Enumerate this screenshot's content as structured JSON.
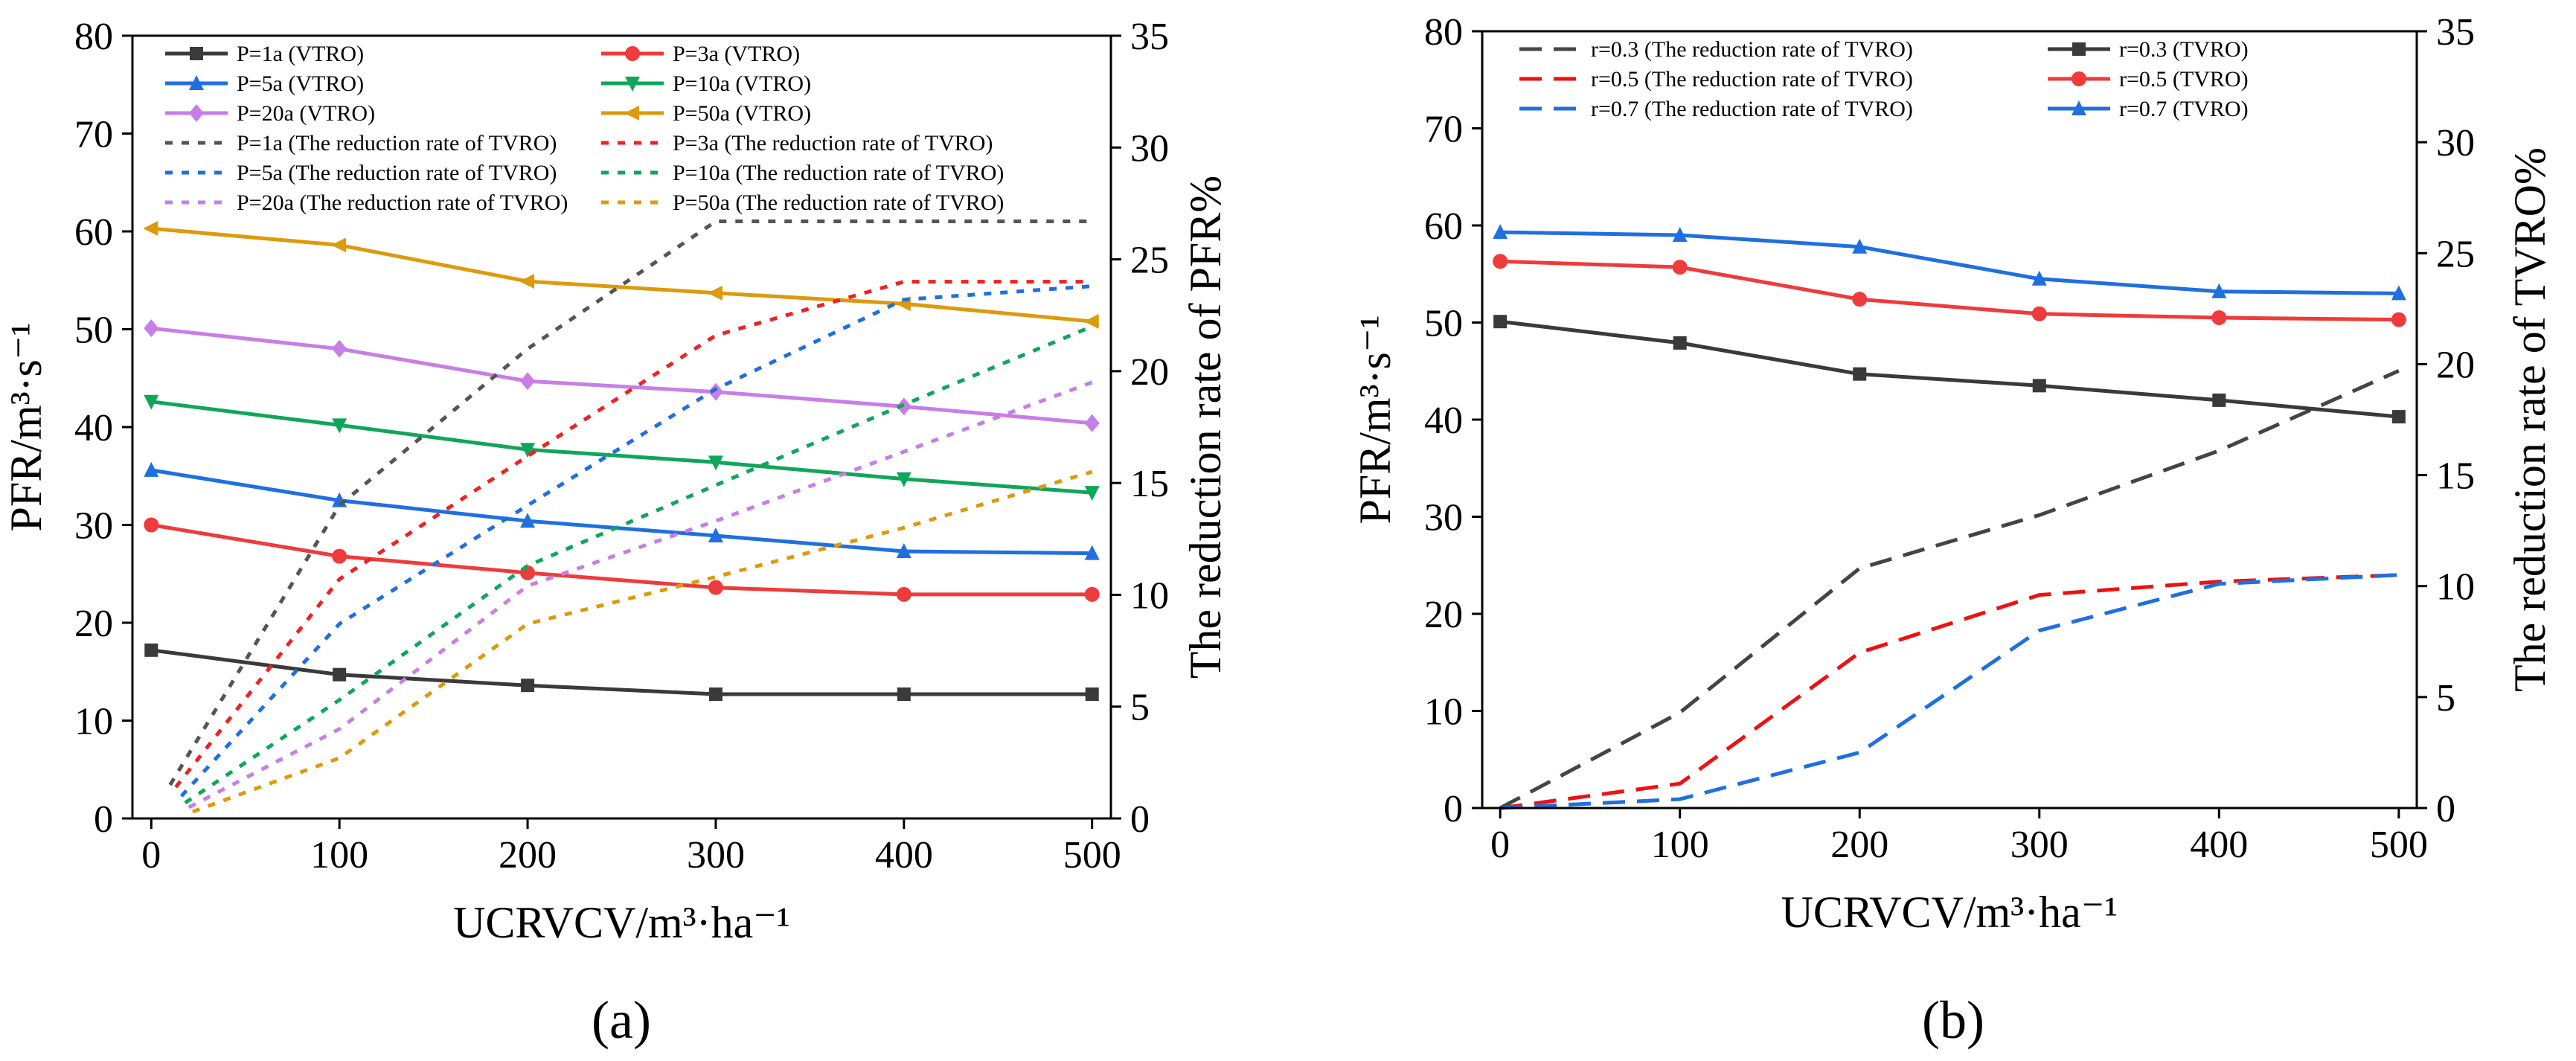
{
  "chart_data": [
    {
      "id": "a",
      "type": "line",
      "panel_label": "(a)",
      "xlabel": "UCRVCV/m³·ha⁻¹",
      "ylabel_left": "PFR/m³·s⁻¹",
      "ylabel_right": "The reduction rate of PFR%",
      "xlim": [
        -10,
        510
      ],
      "ylim_left": [
        0,
        80
      ],
      "ylim_right": [
        0,
        35
      ],
      "xticks": [
        0,
        100,
        200,
        300,
        400,
        500
      ],
      "yticks_left": [
        0,
        10,
        20,
        30,
        40,
        50,
        60,
        70,
        80
      ],
      "yticks_right": [
        0,
        5,
        10,
        15,
        20,
        25,
        30,
        35
      ],
      "legend_position": "top, inside plot, two columns",
      "series": [
        {
          "name": "P=1a (VTRO)",
          "axis": "left",
          "style": "solid",
          "marker": "square",
          "color": "#3a3a3a",
          "x": [
            0,
            100,
            200,
            300,
            400,
            500
          ],
          "y": [
            17.2,
            14.7,
            13.6,
            12.7,
            12.7,
            12.7
          ]
        },
        {
          "name": "P=3a (VTRO)",
          "axis": "left",
          "style": "solid",
          "marker": "circle",
          "color": "#ee3b3b",
          "x": [
            0,
            100,
            200,
            300,
            400,
            500
          ],
          "y": [
            30.0,
            26.8,
            25.1,
            23.6,
            22.9,
            22.9
          ]
        },
        {
          "name": "P=5a (VTRO)",
          "axis": "left",
          "style": "solid",
          "marker": "triangle",
          "color": "#1f6fe0",
          "x": [
            0,
            100,
            200,
            300,
            400,
            500
          ],
          "y": [
            35.6,
            32.5,
            30.4,
            28.9,
            27.3,
            27.1
          ]
        },
        {
          "name": "P=10a (VTRO)",
          "axis": "left",
          "style": "solid",
          "marker": "triangle-down",
          "color": "#10a65a",
          "x": [
            0,
            100,
            200,
            300,
            400,
            500
          ],
          "y": [
            42.6,
            40.2,
            37.7,
            36.4,
            34.7,
            33.3
          ]
        },
        {
          "name": "P=20a (VTRO)",
          "axis": "left",
          "style": "solid",
          "marker": "diamond",
          "color": "#c77ee6",
          "x": [
            0,
            100,
            200,
            300,
            400,
            500
          ],
          "y": [
            50.1,
            48.0,
            44.7,
            43.6,
            42.1,
            40.4
          ]
        },
        {
          "name": "P=50a (VTRO)",
          "axis": "left",
          "style": "solid",
          "marker": "triangle-left",
          "color": "#dc9a0c",
          "x": [
            0,
            100,
            200,
            300,
            400,
            500
          ],
          "y": [
            60.3,
            58.6,
            54.9,
            53.7,
            52.6,
            50.8
          ]
        },
        {
          "name": "P=1a (The reduction rate of TVRO)",
          "axis": "right",
          "style": "dotted",
          "color": "#555555",
          "x": [
            10,
            100,
            200,
            300,
            400,
            500
          ],
          "y": [
            1.5,
            14.0,
            21.0,
            26.7,
            26.7,
            26.7
          ]
        },
        {
          "name": "P=3a (The reduction rate of TVRO)",
          "axis": "right",
          "style": "dotted",
          "color": "#ee2222",
          "x": [
            13,
            100,
            200,
            300,
            400,
            500
          ],
          "y": [
            1.4,
            10.7,
            16.2,
            21.6,
            24.0,
            24.0
          ]
        },
        {
          "name": "P=5a (The reduction rate of TVRO)",
          "axis": "right",
          "style": "dotted",
          "color": "#1f6fe0",
          "x": [
            16,
            100,
            200,
            300,
            400,
            500
          ],
          "y": [
            1.0,
            8.7,
            14.0,
            19.2,
            23.2,
            23.8
          ]
        },
        {
          "name": "P=10a (The reduction rate of TVRO)",
          "axis": "right",
          "style": "dotted",
          "color": "#10a65a",
          "x": [
            18,
            100,
            200,
            300,
            400,
            500
          ],
          "y": [
            0.7,
            5.3,
            11.3,
            14.9,
            18.5,
            22.0
          ]
        },
        {
          "name": "P=20a (The reduction rate of TVRO)",
          "axis": "right",
          "style": "dotted",
          "color": "#c77ee6",
          "x": [
            20,
            100,
            200,
            300,
            400,
            500
          ],
          "y": [
            0.5,
            4.0,
            10.4,
            13.3,
            16.4,
            19.5
          ]
        },
        {
          "name": "P=50a (The reduction rate of TVRO)",
          "axis": "right",
          "style": "dotted",
          "color": "#dc9a0c",
          "x": [
            22,
            100,
            200,
            300,
            400,
            500
          ],
          "y": [
            0.3,
            2.7,
            8.7,
            10.8,
            13.0,
            15.5
          ]
        }
      ]
    },
    {
      "id": "b",
      "type": "line",
      "panel_label": "(b)",
      "xlabel": "UCRVCV/m³·ha⁻¹",
      "ylabel_left": "PFR/m³·s⁻¹",
      "ylabel_right": "The reduction rate of TVRO%",
      "xlim": [
        -10,
        510
      ],
      "ylim_left": [
        0,
        80
      ],
      "ylim_right": [
        0,
        35
      ],
      "xticks": [
        0,
        100,
        200,
        300,
        400,
        500
      ],
      "yticks_left": [
        0,
        10,
        20,
        30,
        40,
        50,
        60,
        70,
        80
      ],
      "yticks_right": [
        0,
        5,
        10,
        15,
        20,
        25,
        30,
        35
      ],
      "legend_position": "top, inside plot, two columns",
      "series": [
        {
          "name": "r=0.3 (The reduction rate of TVRO)",
          "axis": "right",
          "style": "dashed",
          "color": "#444444",
          "x": [
            0,
            100,
            200,
            300,
            400,
            500
          ],
          "y": [
            0.0,
            4.3,
            10.8,
            13.2,
            16.1,
            19.7
          ]
        },
        {
          "name": "r=0.5 (The reduction rate of TVRO)",
          "axis": "right",
          "style": "dashed",
          "color": "#ee1111",
          "x": [
            0,
            100,
            200,
            300,
            400,
            500
          ],
          "y": [
            0.0,
            1.1,
            7.0,
            9.6,
            10.2,
            10.5
          ]
        },
        {
          "name": "r=0.7 (The reduction rate of TVRO)",
          "axis": "right",
          "style": "dashed",
          "color": "#1f6fe0",
          "x": [
            0,
            100,
            200,
            300,
            400,
            500
          ],
          "y": [
            0.0,
            0.4,
            2.5,
            8.0,
            10.1,
            10.5
          ]
        },
        {
          "name": "r=0.3 (TVRO)",
          "axis": "left",
          "style": "solid",
          "marker": "square",
          "color": "#3a3a3a",
          "x": [
            0,
            100,
            200,
            300,
            400,
            500
          ],
          "y": [
            50.1,
            47.9,
            44.7,
            43.5,
            42.0,
            40.3
          ]
        },
        {
          "name": "r=0.5 (TVRO)",
          "axis": "left",
          "style": "solid",
          "marker": "circle",
          "color": "#ee3b3b",
          "x": [
            0,
            100,
            200,
            300,
            400,
            500
          ],
          "y": [
            56.3,
            55.7,
            52.4,
            50.9,
            50.5,
            50.3
          ]
        },
        {
          "name": "r=0.7 (TVRO)",
          "axis": "left",
          "style": "solid",
          "marker": "triangle",
          "color": "#1f6fe0",
          "x": [
            0,
            100,
            200,
            300,
            400,
            500
          ],
          "y": [
            59.3,
            59.0,
            57.8,
            54.5,
            53.2,
            53.0
          ]
        }
      ]
    }
  ]
}
